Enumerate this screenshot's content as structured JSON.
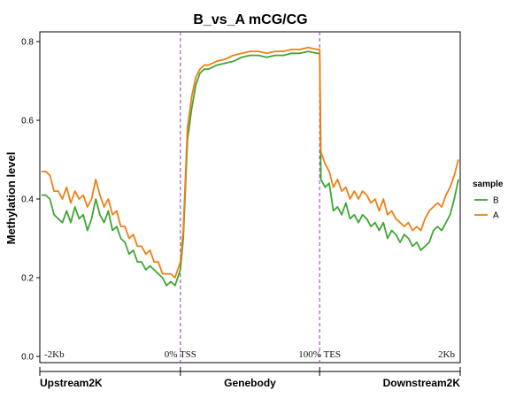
{
  "chart_data": {
    "type": "line",
    "title": "B_vs_A  mCG/CG",
    "ylabel": "Methylation level",
    "xlabel": "",
    "ylim": [
      0,
      0.82
    ],
    "yticks": [
      0.0,
      0.2,
      0.4,
      0.6,
      0.8
    ],
    "ytick_labels": [
      "0.0",
      "0.2",
      "0.4",
      "0.6",
      "0.8"
    ],
    "xlim": [
      0,
      100
    ],
    "region_labels": [
      {
        "x": 0,
        "label": "-2Kb"
      },
      {
        "x": 33.3,
        "label": "0% TSS"
      },
      {
        "x": 66.7,
        "label": "100% TES"
      },
      {
        "x": 100,
        "label": "2Kb"
      }
    ],
    "section_labels": [
      {
        "x": 0,
        "label": "Upstream2K"
      },
      {
        "x": 50,
        "label": "Genebody"
      },
      {
        "x": 100,
        "label": "Downstream2K"
      }
    ],
    "boundaries": [
      33.3,
      66.7
    ],
    "legend": {
      "title": "sample",
      "placement": "right"
    },
    "series": [
      {
        "name": "B",
        "color": "#3fa535",
        "x": [
          0,
          1,
          2,
          3,
          4,
          5,
          6,
          7,
          8,
          9,
          10,
          11,
          12,
          13,
          14,
          15,
          16,
          17,
          18,
          19,
          20,
          21,
          22,
          23,
          24,
          25,
          26,
          27,
          28,
          29,
          30,
          31,
          32,
          33.3,
          34,
          35,
          36,
          37,
          38,
          39,
          40,
          42,
          44,
          46,
          48,
          50,
          52,
          54,
          56,
          58,
          60,
          62,
          64,
          66,
          66.7,
          67,
          68,
          69,
          70,
          71,
          72,
          73,
          74,
          75,
          76,
          77,
          78,
          79,
          80,
          81,
          82,
          83,
          84,
          85,
          86,
          87,
          88,
          89,
          90,
          91,
          92,
          93,
          94,
          95,
          96,
          97,
          98,
          99,
          100
        ],
        "y": [
          0.41,
          0.41,
          0.4,
          0.36,
          0.35,
          0.34,
          0.37,
          0.34,
          0.38,
          0.35,
          0.36,
          0.32,
          0.35,
          0.4,
          0.36,
          0.34,
          0.37,
          0.32,
          0.33,
          0.3,
          0.29,
          0.26,
          0.27,
          0.24,
          0.24,
          0.22,
          0.23,
          0.22,
          0.21,
          0.2,
          0.18,
          0.19,
          0.18,
          0.22,
          0.3,
          0.55,
          0.63,
          0.69,
          0.72,
          0.73,
          0.73,
          0.74,
          0.745,
          0.75,
          0.76,
          0.765,
          0.765,
          0.76,
          0.765,
          0.765,
          0.77,
          0.77,
          0.775,
          0.77,
          0.77,
          0.45,
          0.43,
          0.44,
          0.37,
          0.38,
          0.36,
          0.39,
          0.35,
          0.36,
          0.34,
          0.36,
          0.35,
          0.33,
          0.34,
          0.32,
          0.34,
          0.3,
          0.32,
          0.31,
          0.29,
          0.31,
          0.3,
          0.28,
          0.29,
          0.27,
          0.28,
          0.29,
          0.32,
          0.33,
          0.32,
          0.34,
          0.36,
          0.4,
          0.45
        ]
      },
      {
        "name": "A",
        "color": "#f07f14",
        "x": [
          0,
          1,
          2,
          3,
          4,
          5,
          6,
          7,
          8,
          9,
          10,
          11,
          12,
          13,
          14,
          15,
          16,
          17,
          18,
          19,
          20,
          21,
          22,
          23,
          24,
          25,
          26,
          27,
          28,
          29,
          30,
          31,
          32,
          33.3,
          34,
          35,
          36,
          37,
          38,
          39,
          40,
          42,
          44,
          46,
          48,
          50,
          52,
          54,
          56,
          58,
          60,
          62,
          64,
          66,
          66.7,
          67,
          68,
          69,
          70,
          71,
          72,
          73,
          74,
          75,
          76,
          77,
          78,
          79,
          80,
          81,
          82,
          83,
          84,
          85,
          86,
          87,
          88,
          89,
          90,
          91,
          92,
          93,
          94,
          95,
          96,
          97,
          98,
          99,
          100
        ],
        "y": [
          0.47,
          0.47,
          0.46,
          0.42,
          0.42,
          0.4,
          0.43,
          0.39,
          0.42,
          0.4,
          0.41,
          0.38,
          0.4,
          0.45,
          0.41,
          0.38,
          0.4,
          0.36,
          0.37,
          0.33,
          0.33,
          0.3,
          0.31,
          0.28,
          0.28,
          0.26,
          0.27,
          0.24,
          0.24,
          0.21,
          0.21,
          0.21,
          0.2,
          0.24,
          0.32,
          0.58,
          0.66,
          0.71,
          0.73,
          0.74,
          0.74,
          0.75,
          0.755,
          0.765,
          0.77,
          0.775,
          0.775,
          0.77,
          0.775,
          0.775,
          0.78,
          0.78,
          0.785,
          0.78,
          0.78,
          0.52,
          0.49,
          0.47,
          0.43,
          0.45,
          0.42,
          0.43,
          0.4,
          0.42,
          0.4,
          0.42,
          0.41,
          0.39,
          0.4,
          0.37,
          0.4,
          0.36,
          0.37,
          0.35,
          0.34,
          0.33,
          0.34,
          0.32,
          0.33,
          0.32,
          0.35,
          0.37,
          0.38,
          0.39,
          0.38,
          0.41,
          0.43,
          0.46,
          0.5
        ]
      }
    ]
  }
}
